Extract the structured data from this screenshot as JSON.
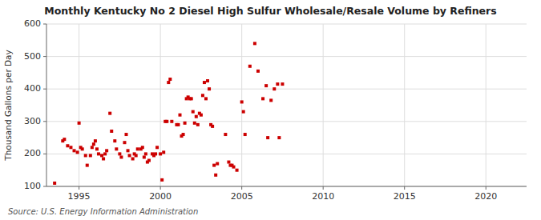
{
  "chart_data": {
    "type": "scatter",
    "title": "Monthly Kentucky No 2 Diesel High Sulfur Wholesale/Resale Volume by Refiners",
    "ylabel": "Thousand Gallons per Day",
    "annotation": "Source: U.S. Energy Information Administration",
    "color": "#cc0000",
    "marker": "square",
    "grid": true,
    "xlim": [
      1993.0,
      2022.5
    ],
    "ylim": [
      100,
      600
    ],
    "xticks": [
      1995,
      2000,
      2005,
      2010,
      2015,
      2020
    ],
    "yticks": [
      100,
      200,
      300,
      400,
      500,
      600
    ],
    "x": [
      1993.5,
      1994.0,
      1994.1,
      1994.3,
      1994.5,
      1994.7,
      1994.9,
      1995.0,
      1995.1,
      1995.2,
      1995.4,
      1995.5,
      1995.7,
      1995.8,
      1995.9,
      1996.0,
      1996.1,
      1996.2,
      1996.4,
      1996.5,
      1996.6,
      1996.7,
      1996.9,
      1997.0,
      1997.2,
      1997.3,
      1997.5,
      1997.6,
      1997.8,
      1997.9,
      1998.0,
      1998.1,
      1998.3,
      1998.4,
      1998.5,
      1998.6,
      1998.8,
      1998.9,
      1999.0,
      1999.1,
      1999.2,
      1999.3,
      1999.5,
      1999.6,
      1999.7,
      1999.8,
      2000.0,
      2000.1,
      2000.2,
      2000.3,
      2000.4,
      2000.5,
      2000.6,
      2000.7,
      2001.0,
      2001.1,
      2001.2,
      2001.3,
      2001.4,
      2001.5,
      2001.6,
      2001.7,
      2001.8,
      2001.9,
      2002.0,
      2002.1,
      2002.2,
      2002.3,
      2002.4,
      2002.5,
      2002.6,
      2002.7,
      2002.8,
      2002.9,
      2003.0,
      2003.1,
      2003.2,
      2003.3,
      2003.4,
      2003.5,
      2004.0,
      2004.2,
      2004.3,
      2004.4,
      2004.5,
      2004.7,
      2005.0,
      2005.1,
      2005.2,
      2005.5,
      2005.8,
      2006.0,
      2006.3,
      2006.5,
      2006.6,
      2006.8,
      2007.0,
      2007.2,
      2007.3,
      2007.5
    ],
    "values": [
      110,
      240,
      245,
      225,
      220,
      210,
      205,
      295,
      220,
      215,
      195,
      165,
      195,
      220,
      230,
      240,
      215,
      200,
      195,
      185,
      200,
      210,
      325,
      270,
      240,
      215,
      200,
      190,
      235,
      260,
      210,
      195,
      185,
      200,
      195,
      215,
      215,
      220,
      190,
      200,
      175,
      180,
      200,
      195,
      200,
      220,
      200,
      120,
      205,
      300,
      300,
      420,
      430,
      300,
      290,
      290,
      320,
      255,
      260,
      295,
      370,
      375,
      370,
      370,
      330,
      295,
      315,
      290,
      325,
      320,
      380,
      420,
      370,
      425,
      400,
      290,
      285,
      165,
      135,
      170,
      260,
      175,
      165,
      165,
      160,
      150,
      360,
      330,
      260,
      470,
      540,
      455,
      370,
      410,
      250,
      365,
      400,
      415,
      250,
      415
    ]
  }
}
